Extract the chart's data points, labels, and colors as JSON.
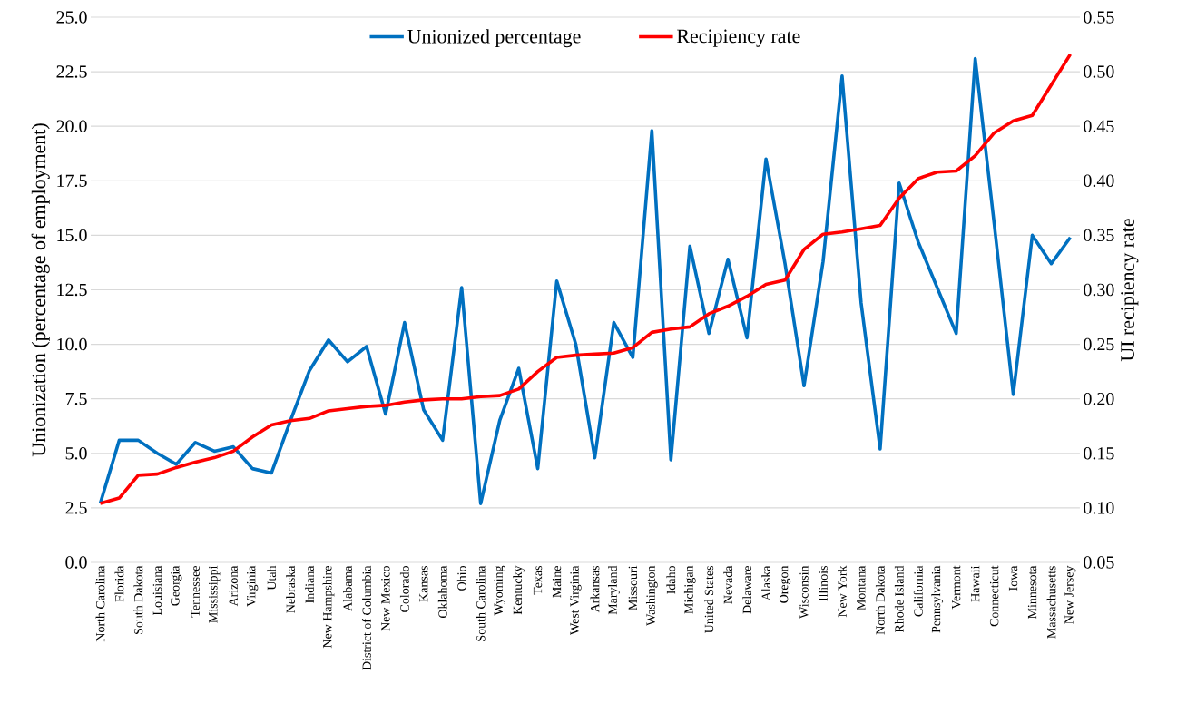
{
  "chart_data": {
    "type": "line",
    "categories": [
      "North Carolina",
      "Florida",
      "South Dakota",
      "Louisiana",
      "Georgia",
      "Tennessee",
      "Mississippi",
      "Arizona",
      "Virginia",
      "Utah",
      "Nebraska",
      "Indiana",
      "New Hampshire",
      "Alabama",
      "District of Columbia",
      "New Mexico",
      "Colorado",
      "Kansas",
      "Oklahoma",
      "Ohio",
      "South Carolina",
      "Wyoming",
      "Kentucky",
      "Texas",
      "Maine",
      "West Virginia",
      "Arkansas",
      "Maryland",
      "Missouri",
      "Washington",
      "Idaho",
      "Michigan",
      "United States",
      "Nevada",
      "Delaware",
      "Alaska",
      "Oregon",
      "Wisconsin",
      "Illinois",
      "New York",
      "Montana",
      "North Dakota",
      "Rhode Island",
      "California",
      "Pennsylvania",
      "Vermont",
      "Hawaii",
      "Connecticut",
      "Iowa",
      "Minnesota",
      "Massachusetts",
      "New Jersey"
    ],
    "series": [
      {
        "name": "Unionized percentage",
        "color": "#0070c0",
        "values": [
          2.7,
          5.6,
          5.6,
          5.0,
          4.5,
          5.5,
          5.1,
          5.3,
          4.3,
          4.1,
          6.5,
          8.8,
          10.2,
          9.2,
          9.9,
          6.8,
          11.0,
          7.0,
          5.6,
          12.6,
          2.7,
          6.5,
          8.9,
          4.3,
          12.9,
          10.0,
          4.8,
          11.0,
          9.4,
          19.8,
          4.7,
          14.5,
          10.5,
          13.9,
          10.3,
          18.5,
          13.7,
          8.1,
          13.8,
          22.3,
          11.9,
          5.2,
          17.4,
          14.7,
          12.6,
          10.5,
          23.1,
          15.5,
          7.7,
          15.0,
          13.7,
          14.9
        ]
      },
      {
        "name": "Recipiency rate",
        "color": "#ff0000",
        "axis": "y2",
        "values": [
          0.104,
          0.109,
          0.13,
          0.131,
          0.137,
          0.142,
          0.146,
          0.152,
          0.165,
          0.176,
          0.18,
          0.182,
          0.189,
          0.191,
          0.193,
          0.194,
          0.197,
          0.199,
          0.2,
          0.2,
          0.202,
          0.203,
          0.209,
          0.225,
          0.238,
          0.24,
          0.241,
          0.242,
          0.247,
          0.261,
          0.264,
          0.266,
          0.278,
          0.285,
          0.294,
          0.305,
          0.309,
          0.337,
          0.351,
          0.353,
          0.356,
          0.359,
          0.384,
          0.402,
          0.408,
          0.409,
          0.423,
          0.444,
          0.455,
          0.46,
          0.488,
          0.516
        ]
      }
    ],
    "ylabel": "Unionization (percentage of employment)",
    "y2label": "UI recipiency rate",
    "ylim": [
      0,
      25
    ],
    "yticks": [
      {
        "value": 0,
        "label": "0.0"
      },
      {
        "value": 2.5,
        "label": "2.5"
      },
      {
        "value": 5,
        "label": "5.0"
      },
      {
        "value": 7.5,
        "label": "7.5"
      },
      {
        "value": 10,
        "label": "10.0"
      },
      {
        "value": 12.5,
        "label": "12.5"
      },
      {
        "value": 15,
        "label": "15.0"
      },
      {
        "value": 17.5,
        "label": "17.5"
      },
      {
        "value": 20,
        "label": "20.0"
      },
      {
        "value": 22.5,
        "label": "22.5"
      },
      {
        "value": 25,
        "label": "25.0"
      }
    ],
    "y2lim": [
      0.05,
      0.55
    ],
    "y2ticks": [
      0.05,
      {
        "value": 0.1,
        "label": "0.10"
      },
      0.15,
      {
        "value": 0.2,
        "label": "0.20"
      },
      0.25,
      {
        "value": 0.3,
        "label": "0.30"
      },
      0.35,
      {
        "value": 0.4,
        "label": "0.40"
      },
      0.45,
      {
        "value": 0.5,
        "label": "0.50"
      },
      0.55
    ],
    "grid": "y",
    "legend": "top"
  }
}
